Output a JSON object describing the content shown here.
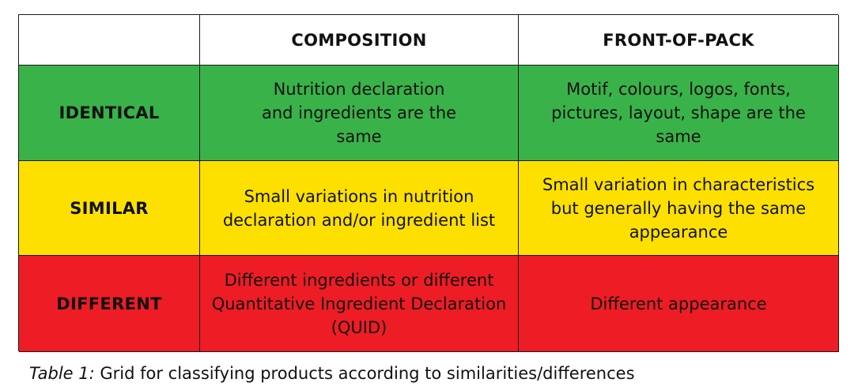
{
  "table": {
    "headers": [
      "",
      "COMPOSITION",
      "FRONT-OF-PACK"
    ],
    "rows": [
      {
        "label": "IDENTICAL",
        "composition": "Nutrition declaration and ingredients are the same",
        "front_of_pack": "Motif, colours, logos, fonts, pictures, layout, shape are the same",
        "color": "#39b24a"
      },
      {
        "label": "SIMILAR",
        "composition": "Small variations in nutrition declaration and/or ingredient list",
        "front_of_pack": "Small variation in characteristics but generally having the same appearance",
        "color": "#fde000"
      },
      {
        "label": "DIFFERENT",
        "composition": "Different ingredients or different Quantitative Ingredient Declaration (QUID)",
        "front_of_pack": "Different appearance",
        "color": "#ee1c25"
      }
    ]
  },
  "caption": {
    "label": "Table 1:",
    "text": " Grid for classifying products according to similarities/differences"
  }
}
